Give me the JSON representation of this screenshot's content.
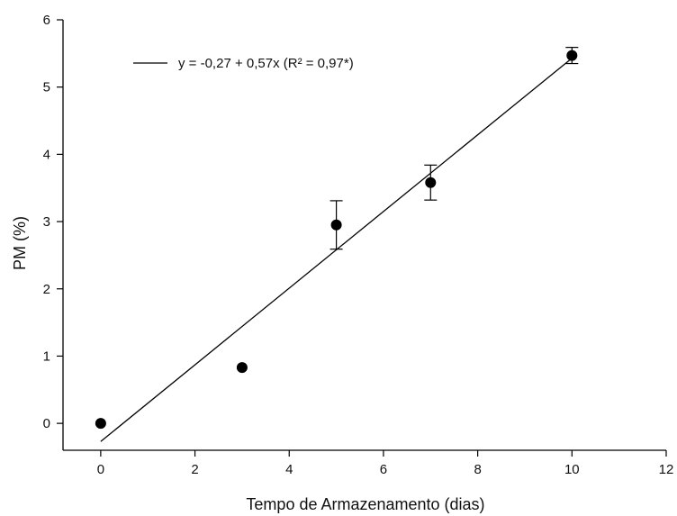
{
  "chart_data": {
    "type": "scatter",
    "title": "",
    "xlabel": "Tempo de Armazenamento (dias)",
    "ylabel": "PM (%)",
    "xlim": [
      -0.8,
      12
    ],
    "ylim": [
      -0.4,
      6
    ],
    "x_ticks": [
      "0",
      "2",
      "4",
      "6",
      "8",
      "10",
      "12"
    ],
    "y_ticks": [
      "0",
      "1",
      "2",
      "3",
      "4",
      "5",
      "6"
    ],
    "grid": false,
    "legend_position": "top-left",
    "points": {
      "x": [
        0,
        3,
        5,
        7,
        10
      ],
      "y": [
        0.0,
        0.83,
        2.95,
        3.58,
        5.47
      ],
      "err": [
        0.0,
        0.0,
        0.36,
        0.26,
        0.12
      ]
    },
    "regression": {
      "label": "y = -0,27 + 0,57x (R² = 0,97*)",
      "intercept": -0.27,
      "slope": 0.57,
      "x_range": [
        0,
        10
      ]
    },
    "colors": {
      "marker": "#000000",
      "line": "#000000",
      "axis": "#000000"
    }
  }
}
